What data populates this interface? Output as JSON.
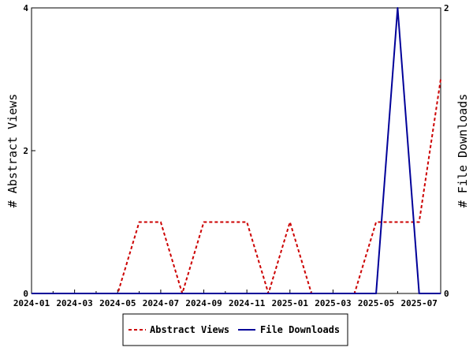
{
  "chart_data": {
    "type": "line",
    "x_dates": [
      "2024-01",
      "2024-02",
      "2024-03",
      "2024-04",
      "2024-05",
      "2024-06",
      "2024-07",
      "2024-08",
      "2024-09",
      "2024-10",
      "2024-11",
      "2024-12",
      "2025-01",
      "2025-02",
      "2025-03",
      "2025-04",
      "2025-05",
      "2025-06",
      "2025-07",
      "2025-08"
    ],
    "x_tick_labels": [
      "2024-01",
      "2024-03",
      "2024-05",
      "2024-07",
      "2024-09",
      "2024-11",
      "2025-01",
      "2025-03",
      "2025-05",
      "2025-07"
    ],
    "series": [
      {
        "name": "Abstract Views",
        "axis": "left",
        "color": "#cc0000",
        "style": "dashed",
        "values": [
          0,
          0,
          0,
          0,
          0,
          1,
          1,
          0,
          1,
          1,
          1,
          0,
          1,
          0,
          0,
          0,
          1,
          1,
          1,
          3
        ]
      },
      {
        "name": "File Downloads",
        "axis": "right",
        "color": "#000099",
        "style": "solid",
        "values": [
          0,
          0,
          0,
          0,
          0,
          0,
          0,
          0,
          0,
          0,
          0,
          0,
          0,
          0,
          0,
          0,
          0,
          2,
          0,
          0
        ]
      }
    ],
    "ylabel_left": "# Abstract Views",
    "ylabel_right": "# File Downloads",
    "ylim_left": [
      0,
      4
    ],
    "ylim_right": [
      0,
      2
    ],
    "yticks_left": [
      "0",
      "2",
      "4"
    ],
    "yticks_right": [
      "0",
      "2"
    ],
    "grid": false,
    "legend_position": "bottom"
  }
}
